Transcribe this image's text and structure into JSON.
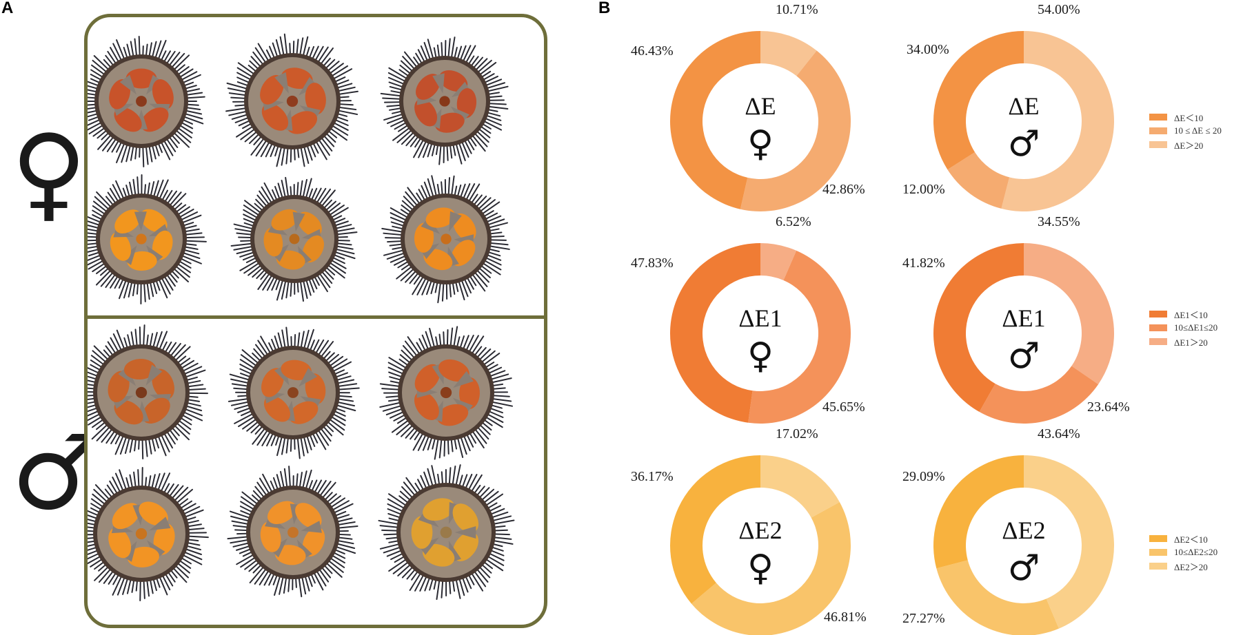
{
  "panels": {
    "a_label": "A",
    "b_label": "B"
  },
  "photo_panel": {
    "female_symbol": "♀",
    "male_symbol": "♂",
    "photo_description": "sea urchin gonad photographs"
  },
  "colors": {
    "border": "#6e6e3a",
    "dE": [
      "#f39344",
      "#f5ab70",
      "#f8c494"
    ],
    "dE1": [
      "#f07c34",
      "#f4925a",
      "#f6ad85"
    ],
    "dE2": [
      "#f8b23e",
      "#f9c46a",
      "#fad08a"
    ]
  },
  "chart_data": [
    {
      "type": "pie",
      "variant": "donut",
      "group": "dE",
      "sex": "female",
      "title": "ΔE",
      "subtitle": "♀",
      "categories": [
        "ΔE＜10",
        "10≤ΔE≤20",
        "ΔE＞20"
      ],
      "values": [
        46.43,
        42.86,
        10.71
      ],
      "labels": [
        "46.43%",
        "42.86%",
        "10.71%"
      ]
    },
    {
      "type": "pie",
      "variant": "donut",
      "group": "dE",
      "sex": "male",
      "title": "ΔE",
      "subtitle": "♂",
      "categories": [
        "ΔE＜10",
        "10≤ΔE≤20",
        "ΔE＞20"
      ],
      "values": [
        34.0,
        12.0,
        54.0
      ],
      "labels": [
        "34.00%",
        "12.00%",
        "54.00%"
      ]
    },
    {
      "type": "pie",
      "variant": "donut",
      "group": "dE1",
      "sex": "female",
      "title": "ΔE1",
      "subtitle": "♀",
      "categories": [
        "ΔE1＜10",
        "10≤ΔE1≤20",
        "ΔE1＞20"
      ],
      "values": [
        47.83,
        45.65,
        6.52
      ],
      "labels": [
        "47.83%",
        "45.65%",
        "6.52%"
      ]
    },
    {
      "type": "pie",
      "variant": "donut",
      "group": "dE1",
      "sex": "male",
      "title": "ΔE1",
      "subtitle": "♂",
      "categories": [
        "ΔE1＜10",
        "10≤ΔE1≤20",
        "ΔE1＞20"
      ],
      "values": [
        41.82,
        23.64,
        34.55
      ],
      "labels": [
        "41.82%",
        "23.64%",
        "34.55%"
      ]
    },
    {
      "type": "pie",
      "variant": "donut",
      "group": "dE2",
      "sex": "female",
      "title": "ΔE2",
      "subtitle": "♀",
      "categories": [
        "ΔE2＜10",
        "10≤ΔE2≤20",
        "ΔE2＞20"
      ],
      "values": [
        36.17,
        46.81,
        17.02
      ],
      "labels": [
        "36.17%",
        "46.81%",
        "17.02%"
      ]
    },
    {
      "type": "pie",
      "variant": "donut",
      "group": "dE2",
      "sex": "male",
      "title": "ΔE2",
      "subtitle": "♂",
      "categories": [
        "ΔE2＜10",
        "10≤ΔE2≤20",
        "ΔE2＞20"
      ],
      "values": [
        29.09,
        27.27,
        43.64
      ],
      "labels": [
        "29.09%",
        "27.27%",
        "43.64%"
      ]
    }
  ],
  "legends": [
    {
      "group": "dE",
      "items": [
        "ΔE＜10",
        "10 ≤ ΔE ≤ 20",
        "ΔE＞20"
      ]
    },
    {
      "group": "dE1",
      "items": [
        "ΔE1＜10",
        "10≤ΔE1≤20",
        "ΔE1＞20"
      ]
    },
    {
      "group": "dE2",
      "items": [
        "ΔE2＜10",
        "10≤ΔE2≤20",
        "ΔE2＞20"
      ]
    }
  ]
}
